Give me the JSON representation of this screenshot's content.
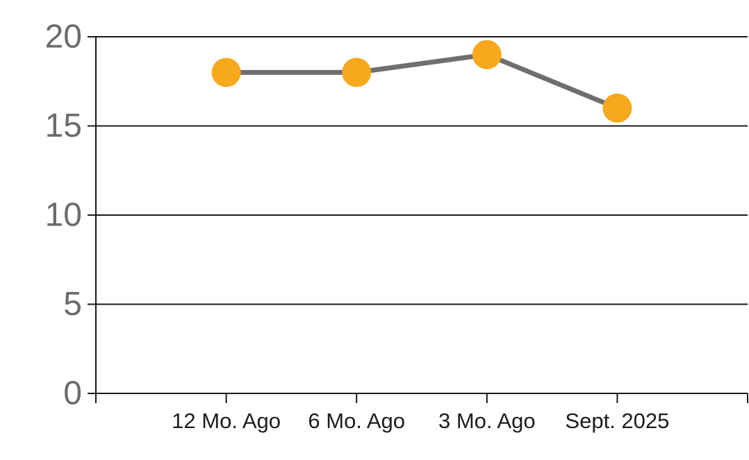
{
  "chart_data": {
    "type": "line",
    "title": "",
    "xlabel": "",
    "ylabel": "",
    "categories": [
      "12 Mo. Ago",
      "6 Mo. Ago",
      "3 Mo. Ago",
      "Sept. 2025"
    ],
    "series": [
      {
        "name": "series-1",
        "values": [
          18,
          18,
          19,
          16
        ]
      }
    ],
    "ylim": [
      0,
      20
    ],
    "yticks": [
      0,
      5,
      10,
      15,
      20
    ],
    "grid": "horizontal-only",
    "legend": "none",
    "colors": {
      "marker": "#F7A81C",
      "line": "#6E6E6E",
      "grid": "#1A1A1A",
      "axis": "#1A1A1A",
      "y_tick_label": "#6B6B6B",
      "x_tick_label": "#1C1C1C",
      "background": "#FFFFFF"
    }
  }
}
